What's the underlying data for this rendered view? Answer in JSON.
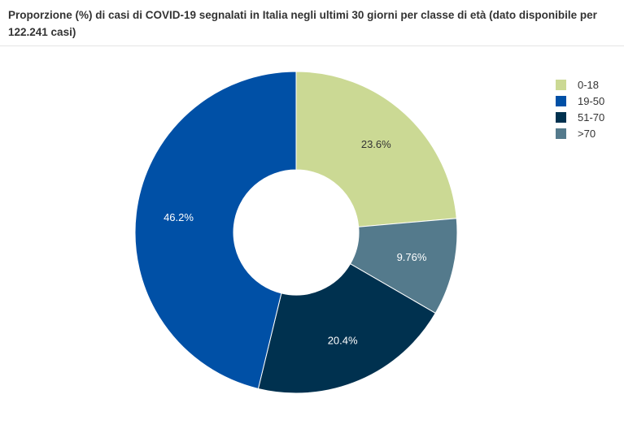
{
  "chart_data": {
    "type": "pie",
    "donut": true,
    "title": "Proporzione (%) di casi di COVID-19 segnalati in Italia negli ultimi 30 giorni per classe di età (dato disponibile per 122.241 casi)",
    "value_suffix": "%",
    "slices": [
      {
        "label": "0-18",
        "value": 23.6,
        "value_label": "23.6%",
        "color": "#cbd994",
        "text_color": "#333333"
      },
      {
        "label": ">70",
        "value": 9.76,
        "value_label": "9.76%",
        "color": "#547a8c",
        "text_color": "#ffffff"
      },
      {
        "label": "51-70",
        "value": 20.4,
        "value_label": "20.4%",
        "color": "#00314f",
        "text_color": "#ffffff"
      },
      {
        "label": "19-50",
        "value": 46.2,
        "value_label": "46.2%",
        "color": "#0050a6",
        "text_color": "#ffffff"
      }
    ],
    "legend": {
      "placement": "top-right",
      "entries": [
        {
          "label": "0-18",
          "color": "#cbd994"
        },
        {
          "label": "19-50",
          "color": "#0050a6"
        },
        {
          "label": "51-70",
          "color": "#00314f"
        },
        {
          "label": ">70",
          "color": "#547a8c"
        }
      ]
    }
  }
}
